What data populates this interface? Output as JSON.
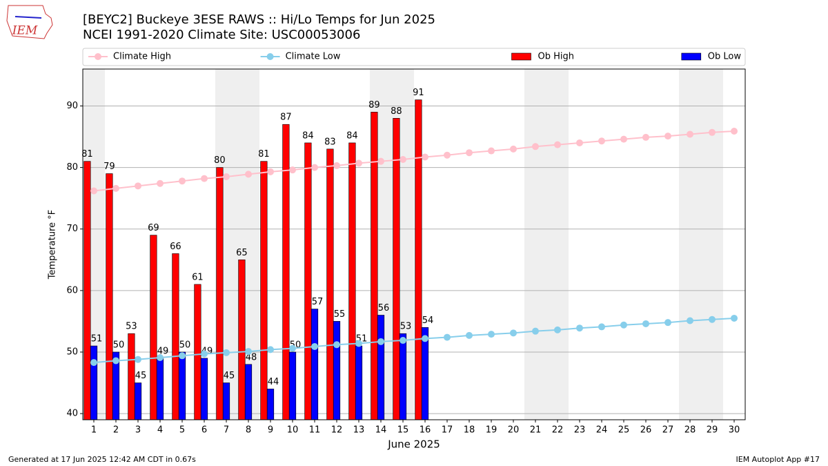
{
  "logo": "IEM",
  "footer_left": "Generated at 17 Jun 2025 12:42 AM CDT in 0.67s",
  "footer_right": "IEM Autoplot App #17",
  "chart_data": {
    "type": "bar",
    "title": "[BEYC2] Buckeye 3ESE RAWS :: Hi/Lo Temps for Jun 2025",
    "subtitle": "NCEI 1991-2020 Climate Site: USC00053006",
    "xlabel": "June 2025",
    "ylabel": "Temperature °F",
    "x": [
      1,
      2,
      3,
      4,
      5,
      6,
      7,
      8,
      9,
      10,
      11,
      12,
      13,
      14,
      15,
      16,
      17,
      18,
      19,
      20,
      21,
      22,
      23,
      24,
      25,
      26,
      27,
      28,
      29,
      30
    ],
    "xlim": [
      0.5,
      30.5
    ],
    "xticks": [
      1,
      2,
      3,
      4,
      5,
      6,
      7,
      8,
      9,
      10,
      11,
      12,
      13,
      14,
      15,
      16,
      17,
      18,
      19,
      20,
      21,
      22,
      23,
      24,
      25,
      26,
      27,
      28,
      29,
      30
    ],
    "ylim": [
      39,
      96
    ],
    "yticks": [
      40,
      50,
      60,
      70,
      80,
      90
    ],
    "grid": true,
    "legend": "top",
    "series": [
      {
        "name": "Climate High",
        "type": "line",
        "color": "#ffc0cb",
        "values": [
          76.2,
          76.6,
          77.0,
          77.4,
          77.8,
          78.2,
          78.5,
          78.9,
          79.3,
          79.6,
          80.0,
          80.3,
          80.7,
          81.0,
          81.3,
          81.7,
          82.0,
          82.4,
          82.7,
          83.0,
          83.4,
          83.7,
          84.0,
          84.3,
          84.6,
          84.9,
          85.1,
          85.4,
          85.7,
          85.9
        ]
      },
      {
        "name": "Climate Low",
        "type": "line",
        "color": "#87ceeb",
        "values": [
          48.3,
          48.6,
          48.8,
          49.1,
          49.4,
          49.7,
          49.9,
          50.1,
          50.4,
          50.6,
          50.9,
          51.2,
          51.4,
          51.7,
          51.9,
          52.2,
          52.4,
          52.7,
          52.9,
          53.1,
          53.4,
          53.6,
          53.9,
          54.1,
          54.4,
          54.6,
          54.8,
          55.1,
          55.3,
          55.5
        ]
      },
      {
        "name": "Ob High",
        "type": "bar",
        "color": "#ff0000",
        "values": [
          81,
          79,
          53,
          69,
          66,
          61,
          80,
          65,
          81,
          87,
          84,
          83,
          84,
          89,
          88,
          91,
          null,
          null,
          null,
          null,
          null,
          null,
          null,
          null,
          null,
          null,
          null,
          null,
          null,
          null
        ]
      },
      {
        "name": "Ob Low",
        "type": "bar",
        "color": "#0000ff",
        "values": [
          51,
          50,
          45,
          49,
          50,
          49,
          45,
          48,
          44,
          50,
          57,
          55,
          51,
          56,
          53,
          54,
          null,
          null,
          null,
          null,
          null,
          null,
          null,
          null,
          null,
          null,
          null,
          null,
          null,
          null
        ]
      }
    ]
  }
}
